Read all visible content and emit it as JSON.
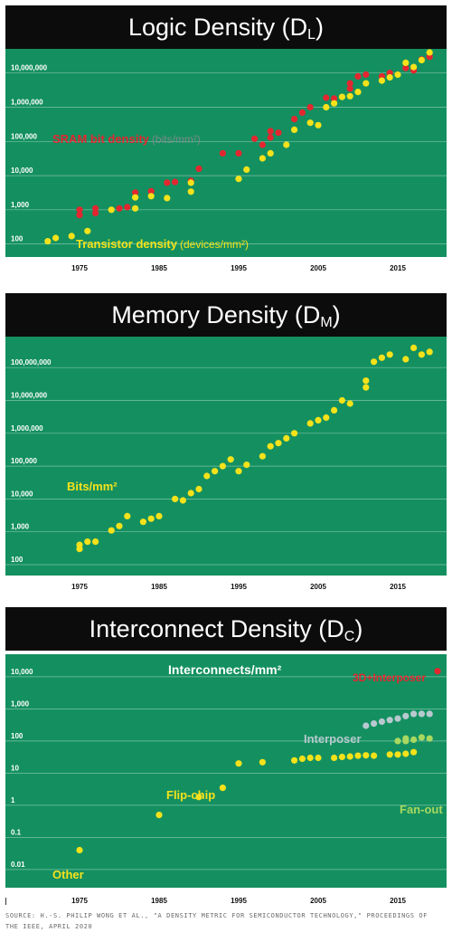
{
  "source_note": "SOURCE: H.-S. PHILIP WONG ET AL., \"A DENSITY METRIC FOR SEMICONDUCTOR TECHNOLOGY,\" PROCEEDINGS OF THE IEEE, APRIL 2020",
  "colors": {
    "background": "#149060",
    "header": "#0c0c0c",
    "yellow": "#f5e21a",
    "red": "#e32630",
    "light_green": "#a8d860",
    "gray_blue": "#b7c9cf"
  },
  "chart_data": [
    {
      "type": "scatter",
      "title": "Logic Density (D",
      "title_sub": "L",
      "title_close": ")",
      "x_ticks": [
        "1975",
        "1985",
        "1995",
        "2005",
        "2015"
      ],
      "y_ticks": [
        "100",
        "1,000",
        "10,000",
        "100,000",
        "1,000,000",
        "10,000,000"
      ],
      "y_scale": "log",
      "xlim": [
        1970,
        2020
      ],
      "ylim": [
        60,
        40000000
      ],
      "grid": true,
      "annotations": [
        {
          "id": "sram",
          "text": "SRAM bit density",
          "unit": "(bits/mm²)",
          "color": "#e32630"
        },
        {
          "id": "transistor",
          "text": "Transistor density",
          "unit": "(devices/mm²)",
          "color": "#f5e21a"
        }
      ],
      "series": [
        {
          "name": "SRAM bit density",
          "unit": "(bits/mm²)",
          "color": "#e32630",
          "points": [
            [
              1975,
              1000
            ],
            [
              1975,
              700
            ],
            [
              1977,
              1100
            ],
            [
              1977,
              800
            ],
            [
              1980,
              1100
            ],
            [
              1981,
              1200
            ],
            [
              1982,
              3200
            ],
            [
              1984,
              3500
            ],
            [
              1986,
              6200
            ],
            [
              1987,
              6500
            ],
            [
              1989,
              7000
            ],
            [
              1990,
              16000
            ],
            [
              1993,
              45000
            ],
            [
              1995,
              45000
            ],
            [
              1997,
              120000
            ],
            [
              1998,
              80000
            ],
            [
              1999,
              200000
            ],
            [
              1999,
              130000
            ],
            [
              2000,
              180000
            ],
            [
              2002,
              450000
            ],
            [
              2003,
              700000
            ],
            [
              2004,
              1000000
            ],
            [
              2006,
              1900000
            ],
            [
              2007,
              1800000
            ],
            [
              2009,
              3500000
            ],
            [
              2009,
              5000000
            ],
            [
              2010,
              8000000
            ],
            [
              2011,
              9000000
            ],
            [
              2013,
              8000000
            ],
            [
              2014,
              10000000
            ],
            [
              2016,
              14000000
            ],
            [
              2017,
              12000000
            ],
            [
              2018,
              25000000
            ],
            [
              2019,
              30000000
            ]
          ]
        },
        {
          "name": "Transistor density",
          "unit": "(devices/mm²)",
          "color": "#f5e21a",
          "points": [
            [
              1971,
              120
            ],
            [
              1972,
              150
            ],
            [
              1974,
              170
            ],
            [
              1976,
              240
            ],
            [
              1979,
              1000
            ],
            [
              1982,
              2300
            ],
            [
              1982,
              1100
            ],
            [
              1984,
              2500
            ],
            [
              1986,
              2200
            ],
            [
              1989,
              6200
            ],
            [
              1989,
              3400
            ],
            [
              1995,
              8000
            ],
            [
              1996,
              15000
            ],
            [
              1998,
              32000
            ],
            [
              1999,
              45000
            ],
            [
              2001,
              80000
            ],
            [
              2002,
              220000
            ],
            [
              2004,
              350000
            ],
            [
              2005,
              300000
            ],
            [
              2006,
              1000000
            ],
            [
              2007,
              1300000
            ],
            [
              2008,
              2000000
            ],
            [
              2009,
              2100000
            ],
            [
              2010,
              2800000
            ],
            [
              2011,
              5000000
            ],
            [
              2013,
              6000000
            ],
            [
              2014,
              7500000
            ],
            [
              2015,
              9000000
            ],
            [
              2016,
              20000000
            ],
            [
              2017,
              15000000
            ],
            [
              2018,
              24000000
            ],
            [
              2019,
              40000000
            ]
          ]
        }
      ]
    },
    {
      "type": "scatter",
      "title": "Memory Density (D",
      "title_sub": "M",
      "title_close": ")",
      "x_ticks": [
        "1975",
        "1985",
        "1995",
        "2005",
        "2015"
      ],
      "y_ticks": [
        "100",
        "1,000",
        "10,000",
        "100,000",
        "1,000,000",
        "10,000,000",
        "100,000,000"
      ],
      "y_scale": "log",
      "xlim": [
        1970,
        2020
      ],
      "ylim": [
        60,
        600000000
      ],
      "grid": true,
      "annotations": [
        {
          "id": "bits",
          "text": "Bits/mm²",
          "color": "#f5e21a"
        }
      ],
      "series": [
        {
          "name": "Bits/mm²",
          "color": "#f5e21a",
          "points": [
            [
              1975,
              300
            ],
            [
              1975,
              400
            ],
            [
              1976,
              500
            ],
            [
              1977,
              500
            ],
            [
              1979,
              1100
            ],
            [
              1980,
              1500
            ],
            [
              1981,
              3000
            ],
            [
              1983,
              2000
            ],
            [
              1984,
              2500
            ],
            [
              1985,
              3000
            ],
            [
              1987,
              10000
            ],
            [
              1988,
              9000
            ],
            [
              1989,
              15000
            ],
            [
              1990,
              20000
            ],
            [
              1991,
              50000
            ],
            [
              1992,
              70000
            ],
            [
              1993,
              100000
            ],
            [
              1994,
              160000
            ],
            [
              1995,
              70000
            ],
            [
              1996,
              110000
            ],
            [
              1998,
              200000
            ],
            [
              1999,
              400000
            ],
            [
              2000,
              500000
            ],
            [
              2001,
              700000
            ],
            [
              2002,
              1000000
            ],
            [
              2004,
              2000000
            ],
            [
              2005,
              2500000
            ],
            [
              2006,
              3000000
            ],
            [
              2007,
              5000000
            ],
            [
              2008,
              10000000
            ],
            [
              2009,
              8000000
            ],
            [
              2011,
              25000000
            ],
            [
              2011,
              40000000
            ],
            [
              2012,
              150000000
            ],
            [
              2013,
              200000000
            ],
            [
              2014,
              250000000
            ],
            [
              2016,
              180000000
            ],
            [
              2017,
              400000000
            ],
            [
              2018,
              250000000
            ],
            [
              2019,
              300000000
            ]
          ]
        }
      ]
    },
    {
      "type": "scatter",
      "title": "Interconnect Density (D",
      "title_sub": "C",
      "title_close": ")",
      "x_ticks": [
        "1975",
        "1985",
        "1995",
        "2005",
        "2015"
      ],
      "y_ticks": [
        "0.01",
        "0.1",
        "1",
        "10",
        "100",
        "1,000",
        "10,000"
      ],
      "y_scale": "log",
      "xlim": [
        1970,
        2020
      ],
      "ylim": [
        0.004,
        30000
      ],
      "grid": true,
      "annotations": [
        {
          "id": "unit",
          "text": "Interconnects/mm²",
          "color": "#ffffff"
        },
        {
          "id": "3d",
          "text": "3D+Interposer",
          "color": "#e32630"
        },
        {
          "id": "interposer",
          "text": "Interposer",
          "color": "#b7c9cf"
        },
        {
          "id": "flipchip",
          "text": "Flip-chip",
          "color": "#f5e21a"
        },
        {
          "id": "fanout",
          "text": "Fan-out",
          "color": "#a8d860"
        },
        {
          "id": "other",
          "text": "Other",
          "color": "#f5e21a"
        }
      ],
      "series": [
        {
          "name": "Other",
          "color": "#f5e21a",
          "points": [
            [
              1975,
              0.04
            ],
            [
              1985,
              0.5
            ],
            [
              1990,
              1.8
            ],
            [
              1993,
              3.5
            ]
          ]
        },
        {
          "name": "Flip-chip",
          "color": "#f5e21a",
          "points": [
            [
              1995,
              20
            ],
            [
              1998,
              22
            ],
            [
              2002,
              25
            ],
            [
              2003,
              28
            ],
            [
              2004,
              30
            ],
            [
              2005,
              30
            ],
            [
              2007,
              30
            ],
            [
              2008,
              32
            ],
            [
              2009,
              33
            ],
            [
              2010,
              35
            ],
            [
              2011,
              36
            ],
            [
              2012,
              35
            ],
            [
              2014,
              38
            ],
            [
              2015,
              38
            ],
            [
              2016,
              40
            ],
            [
              2017,
              45
            ]
          ]
        },
        {
          "name": "Fan-out",
          "color": "#a8d860",
          "points": [
            [
              2015,
              100
            ],
            [
              2016,
              100
            ],
            [
              2016,
              120
            ],
            [
              2017,
              110
            ],
            [
              2018,
              130
            ],
            [
              2019,
              120
            ]
          ]
        },
        {
          "name": "Interposer",
          "color": "#b7c9cf",
          "points": [
            [
              2011,
              300
            ],
            [
              2012,
              350
            ],
            [
              2013,
              400
            ],
            [
              2014,
              450
            ],
            [
              2015,
              500
            ],
            [
              2016,
              600
            ],
            [
              2017,
              700
            ],
            [
              2018,
              700
            ],
            [
              2019,
              700
            ]
          ]
        },
        {
          "name": "3D+Interposer",
          "color": "#e32630",
          "points": [
            [
              2020,
              15000
            ]
          ]
        }
      ]
    }
  ]
}
